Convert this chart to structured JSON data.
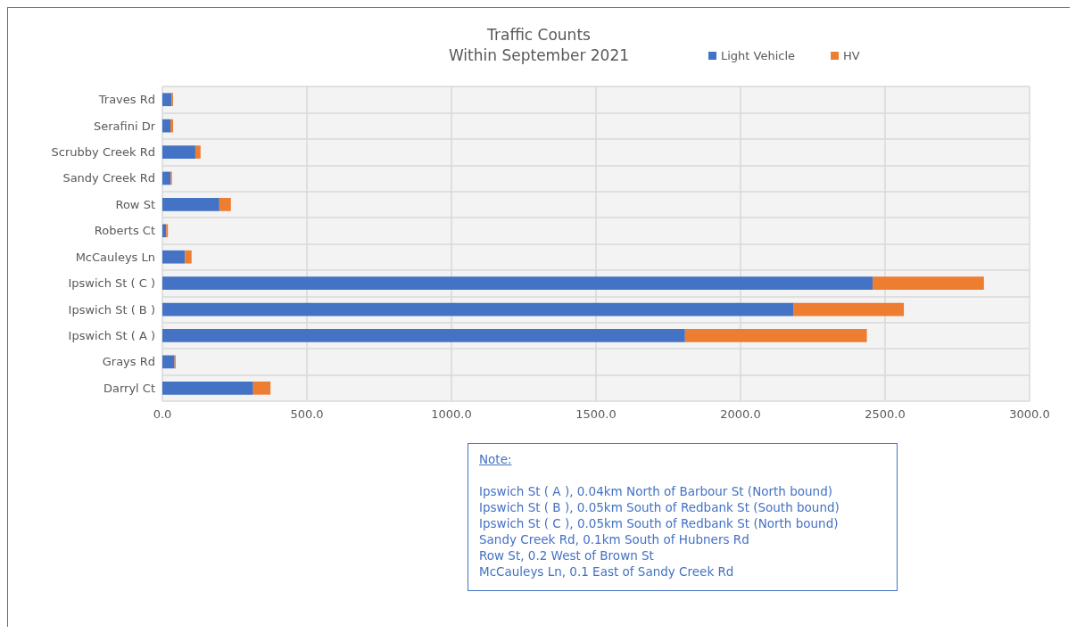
{
  "chart_data": {
    "type": "bar",
    "orientation": "horizontal",
    "stacked": true,
    "title": "Traffic Counts",
    "subtitle": "Within September 2021",
    "categories": [
      "Traves Rd",
      "Serafini Dr",
      "Scrubby Creek Rd",
      "Sandy Creek Rd",
      "Row St",
      "Roberts Ct",
      "McCauleys Ln",
      "Ipswich St ( C )",
      "Ipswich St ( B )",
      "Ipswich St ( A )",
      "Grays Rd",
      "Darryl Ct"
    ],
    "series": [
      {
        "name": "Light Vehicle",
        "color": "#4472c4",
        "values": [
          32,
          28,
          114,
          29,
          197,
          13,
          78,
          2457,
          2184,
          1808,
          42,
          314
        ]
      },
      {
        "name": "HV",
        "color": "#ed7d31",
        "values": [
          5,
          9,
          18,
          4,
          40,
          6,
          23,
          385,
          381,
          629,
          4,
          60
        ]
      }
    ],
    "xlim": [
      0,
      3000
    ],
    "xticks": [
      {
        "value": 0,
        "label": "0.0"
      },
      {
        "value": 500,
        "label": "500.0"
      },
      {
        "value": 1000,
        "label": "1000.0"
      },
      {
        "value": 1500,
        "label": "1500.0"
      },
      {
        "value": 2000,
        "label": "2000.0"
      },
      {
        "value": 2500,
        "label": "2500.0"
      },
      {
        "value": 3000,
        "label": "3000.0"
      }
    ],
    "grid": true,
    "legend": "top right",
    "annotations": [
      "Note:",
      "Ipswich St ( A ), 0.04km North of Barbour St (North bound)",
      "Ipswich St ( B ), 0.05km South of Redbank St (South bound)",
      "Ipswich St ( C ), 0.05km South of Redbank St (North bound)",
      "Sandy Creek Rd, 0.1km South of Hubners Rd",
      "Row St, 0.2 West of Brown St",
      "McCauleys Ln, 0.1 East of Sandy Creek Rd"
    ]
  }
}
